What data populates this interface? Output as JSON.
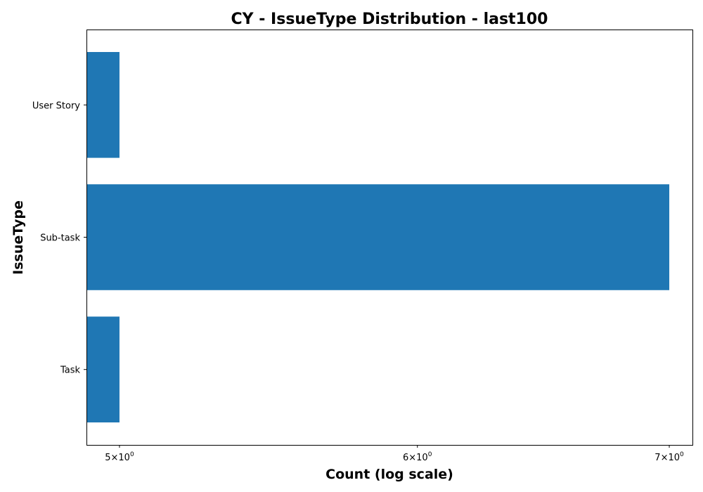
{
  "chart_data": {
    "type": "bar",
    "orientation": "horizontal",
    "title": "CY - IssueType Distribution - last100",
    "xlabel": "Count (log scale)",
    "ylabel": "IssueType",
    "x_scale": "log",
    "xlim": [
      4.9,
      7.1
    ],
    "categories": [
      "User Story",
      "Sub-task",
      "Task"
    ],
    "values": [
      5,
      7,
      5
    ],
    "x_ticks": [
      {
        "value": 5,
        "base": "5×10",
        "exp": "0"
      },
      {
        "value": 6,
        "base": "6×10",
        "exp": "0"
      },
      {
        "value": 7,
        "base": "7×10",
        "exp": "0"
      }
    ],
    "bar_color": "#1f77b4",
    "grid": false,
    "legend": "none"
  }
}
